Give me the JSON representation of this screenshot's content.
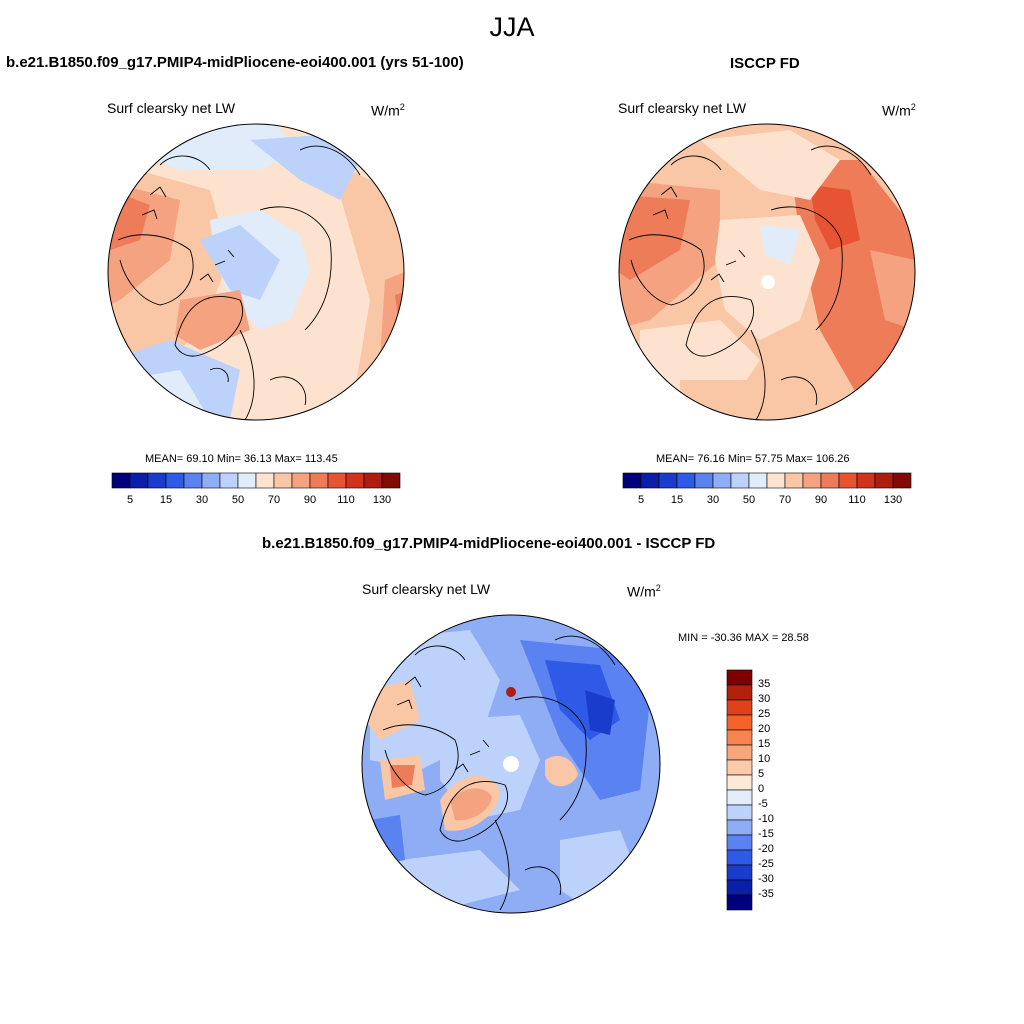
{
  "figure_title": "JJA",
  "panels": [
    {
      "title": "b.e21.B1850.f09_g17.PMIP4-midPliocene-eoi400.001 (yrs 51-100)",
      "subtitle": "Surf clearsky net LW",
      "units_base": "W/m",
      "units_exp": "2",
      "stats": "MEAN=  69.10  Min=  36.13  Max= 113.45"
    },
    {
      "title": "ISCCP FD",
      "subtitle": "Surf clearsky net LW",
      "units_base": "W/m",
      "units_exp": "2",
      "stats": "MEAN=  76.16  Min=  57.75  Max= 106.26"
    },
    {
      "title": "b.e21.B1850.f09_g17.PMIP4-midPliocene-eoi400.001 - ISCCP FD",
      "subtitle": "Surf clearsky net LW",
      "units_base": "W/m",
      "units_exp": "2",
      "stats": "MIN = -30.36 MAX =  28.58"
    }
  ],
  "colorbar_abs": {
    "labels": [
      "5",
      "15",
      "30",
      "50",
      "70",
      "90",
      "110",
      "130"
    ],
    "colors": [
      "#00007f",
      "#0a1eaa",
      "#1a3ccc",
      "#2f5ae6",
      "#5a82f0",
      "#8fadf5",
      "#bcd2fa",
      "#e0ecfa",
      "#fde3cf",
      "#f9c6a6",
      "#f4a280",
      "#ef7c59",
      "#e75433",
      "#d0321a",
      "#b01c0e",
      "#820a03"
    ]
  },
  "colorbar_diff": {
    "labels": [
      "35",
      "30",
      "25",
      "20",
      "15",
      "10",
      "5",
      "0",
      "-5",
      "-10",
      "-15",
      "-20",
      "-25",
      "-30",
      "-35"
    ],
    "colors_top_to_bottom": [
      "#7f0000",
      "#b3200b",
      "#e0401a",
      "#f4622c",
      "#f78450",
      "#f9a67a",
      "#fbcaa8",
      "#fde9d8",
      "#e2ecfb",
      "#bcd2fa",
      "#8fadf5",
      "#5a82f0",
      "#2f5ae6",
      "#1a3ccc",
      "#0a1eaa",
      "#00007f"
    ]
  },
  "map_colors": {
    "outline": "#000000"
  }
}
